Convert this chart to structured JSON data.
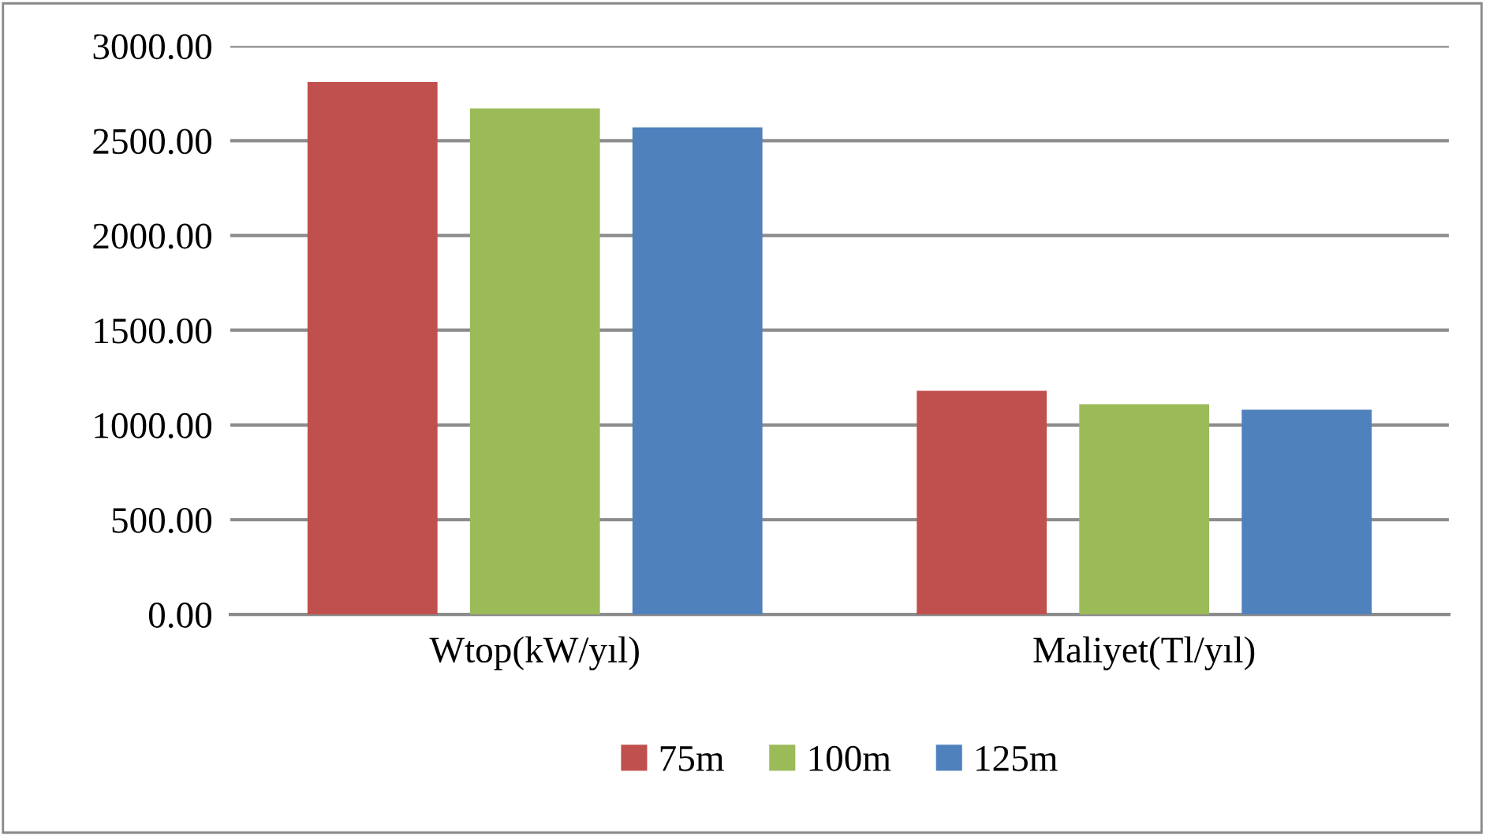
{
  "chart_data": {
    "type": "bar",
    "categories": [
      "Wtop(kW/yıl)",
      "Maliyet(Tl/yıl)"
    ],
    "series": [
      {
        "name": "75m",
        "color": "#c0504d",
        "values": [
          2810,
          1180
        ]
      },
      {
        "name": "100m",
        "color": "#9bbb59",
        "values": [
          2670,
          1110
        ]
      },
      {
        "name": "125m",
        "color": "#4f81bd",
        "values": [
          2570,
          1080
        ]
      }
    ],
    "ylim": [
      0,
      3000
    ],
    "yticks": [
      {
        "value": 0,
        "label": "0.00"
      },
      {
        "value": 500,
        "label": "500.00"
      },
      {
        "value": 1000,
        "label": "1000.00"
      },
      {
        "value": 1500,
        "label": "1500.00"
      },
      {
        "value": 2000,
        "label": "2000.00"
      },
      {
        "value": 2500,
        "label": "2500.00"
      },
      {
        "value": 3000,
        "label": "3000.00"
      }
    ],
    "grid": "y",
    "legend": "bottom"
  }
}
